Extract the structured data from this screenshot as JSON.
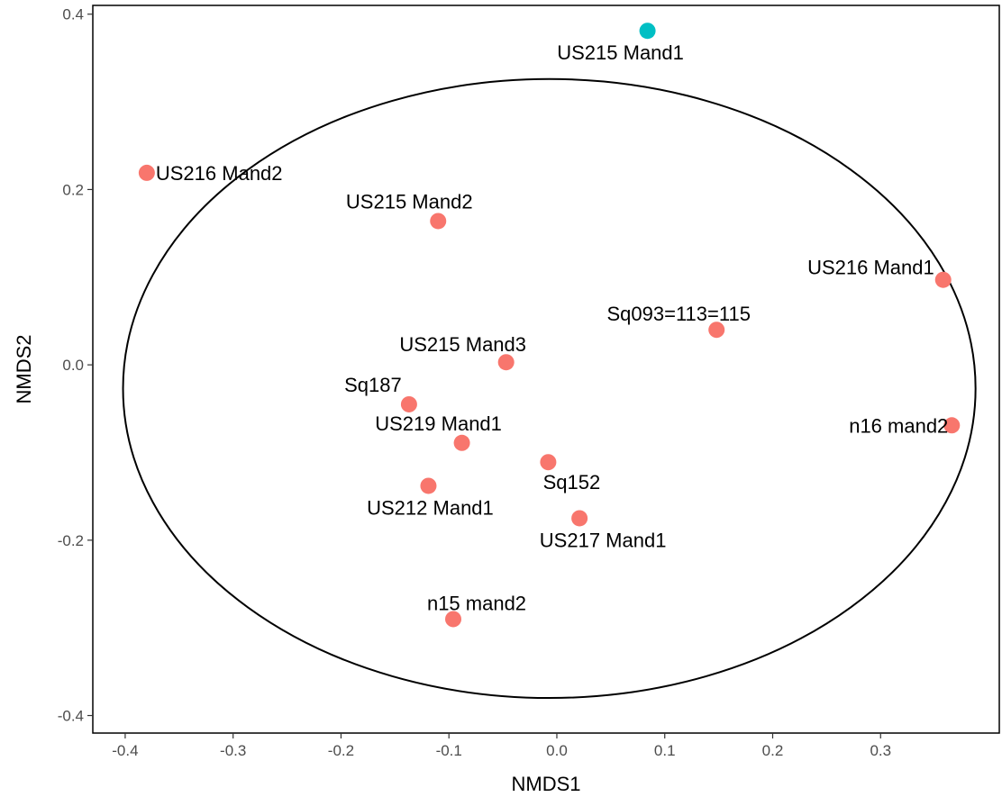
{
  "chart_data": {
    "type": "scatter",
    "title": "",
    "xlabel": "NMDS1",
    "ylabel": "NMDS2",
    "xlim": [
      -0.43,
      0.41
    ],
    "ylim": [
      -0.42,
      0.41
    ],
    "xticks": [
      -0.4,
      -0.3,
      -0.2,
      -0.1,
      0.0,
      0.1,
      0.2,
      0.3
    ],
    "xtick_labels": [
      "-0.4",
      "-0.3",
      "-0.2",
      "-0.1",
      "0.0",
      "0.1",
      "0.2",
      "0.3"
    ],
    "yticks": [
      -0.4,
      -0.2,
      0.0,
      0.2,
      0.4
    ],
    "ytick_labels": [
      "-0.4",
      "-0.2",
      "0.0",
      "0.2",
      "0.4"
    ],
    "grid": false,
    "legend": "none",
    "colors": {
      "group_a": "#f8766d",
      "group_b": "#00bfc4"
    },
    "ellipse": {
      "center": [
        -0.007,
        -0.027
      ],
      "radii": [
        0.395,
        0.353
      ]
    },
    "points": [
      {
        "label": "US215 Mand1",
        "x": 0.084,
        "y": 0.381,
        "group": "group_b"
      },
      {
        "label": "US216 Mand2",
        "x": -0.38,
        "y": 0.219,
        "group": "group_a"
      },
      {
        "label": "US215 Mand2",
        "x": -0.11,
        "y": 0.164,
        "group": "group_a"
      },
      {
        "label": "US216 Mand1",
        "x": 0.358,
        "y": 0.097,
        "group": "group_a"
      },
      {
        "label": "Sq093=113=115",
        "x": 0.148,
        "y": 0.04,
        "group": "group_a"
      },
      {
        "label": "US215 Mand3",
        "x": -0.047,
        "y": 0.003,
        "group": "group_a"
      },
      {
        "label": "Sq187",
        "x": -0.137,
        "y": -0.045,
        "group": "group_a"
      },
      {
        "label": "n16 mand2",
        "x": 0.366,
        "y": -0.069,
        "group": "group_a"
      },
      {
        "label": "US219 Mand1",
        "x": -0.088,
        "y": -0.089,
        "group": "group_a"
      },
      {
        "label": "Sq152",
        "x": -0.008,
        "y": -0.111,
        "group": "group_a"
      },
      {
        "label": "US212 Mand1",
        "x": -0.119,
        "y": -0.138,
        "group": "group_a"
      },
      {
        "label": "US217 Mand1",
        "x": 0.021,
        "y": -0.175,
        "group": "group_a"
      },
      {
        "label": "n15 mand2",
        "x": -0.096,
        "y": -0.29,
        "group": "group_a"
      }
    ]
  }
}
